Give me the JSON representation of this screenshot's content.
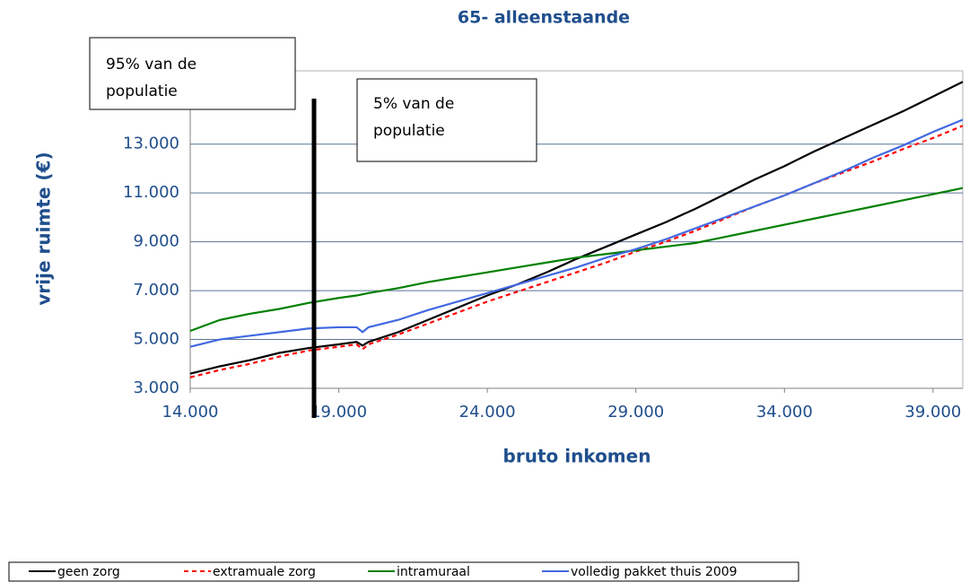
{
  "chart_data": {
    "type": "line",
    "title": "65- alleenstaande",
    "x_label": "bruto inkomen",
    "y_label": "vrije ruimte (€)",
    "x": [
      14000,
      15000,
      16000,
      17000,
      18000,
      19000,
      19600,
      19800,
      20000,
      21000,
      22000,
      23000,
      24000,
      25000,
      26000,
      27000,
      28000,
      29000,
      30000,
      31000,
      32000,
      33000,
      34000,
      35000,
      36000,
      37000,
      38000,
      39000,
      40000
    ],
    "series": [
      {
        "name": "geen zorg",
        "color": "#000000",
        "dash": false,
        "values": [
          3600,
          3900,
          4150,
          4450,
          4650,
          4800,
          4900,
          4750,
          4900,
          5300,
          5800,
          6300,
          6800,
          7250,
          7750,
          8300,
          8800,
          9300,
          9800,
          10350,
          10950,
          11550,
          12100,
          12700,
          13250,
          13800,
          14350,
          14950,
          15550
        ]
      },
      {
        "name": "extramuale zorg",
        "color": "#ff0000",
        "dash": true,
        "values": [
          3450,
          3750,
          4000,
          4300,
          4550,
          4700,
          4800,
          4600,
          4800,
          5200,
          5650,
          6100,
          6550,
          6950,
          7350,
          7750,
          8150,
          8600,
          9000,
          9450,
          9950,
          10450,
          10900,
          11400,
          11850,
          12300,
          12800,
          13250,
          13750
        ]
      },
      {
        "name": "intramuraal",
        "color": "#008000",
        "dash": false,
        "values": [
          5350,
          5800,
          6050,
          6250,
          6500,
          6700,
          6800,
          6850,
          6900,
          7100,
          7350,
          7550,
          7750,
          7950,
          8150,
          8350,
          8500,
          8650,
          8800,
          8950,
          9200,
          9450,
          9700,
          9950,
          10200,
          10450,
          10700,
          10950,
          11200
        ]
      },
      {
        "name": "volledig pakket thuis 2009",
        "color": "#4169e1",
        "dash": false,
        "values": [
          4700,
          5000,
          5150,
          5300,
          5450,
          5500,
          5500,
          5300,
          5500,
          5800,
          6200,
          6550,
          6900,
          7250,
          7600,
          7950,
          8350,
          8700,
          9100,
          9550,
          10000,
          10450,
          10900,
          11400,
          11900,
          12450,
          12950,
          13500,
          14000
        ]
      }
    ],
    "xlim": [
      14000,
      40000
    ],
    "ylim": [
      3000,
      16000
    ],
    "xticks": [
      {
        "value": 14000,
        "label": "14.000"
      },
      {
        "value": 19000,
        "label": "19.000"
      },
      {
        "value": 24000,
        "label": "24.000"
      },
      {
        "value": 29000,
        "label": "29.000"
      },
      {
        "value": 34000,
        "label": "34.000"
      },
      {
        "value": 39000,
        "label": "39.000"
      }
    ],
    "yticks": [
      {
        "value": 3000,
        "label": "3.000"
      },
      {
        "value": 5000,
        "label": "5.000"
      },
      {
        "value": 7000,
        "label": "7.000"
      },
      {
        "value": 9000,
        "label": "9.000"
      },
      {
        "value": 11000,
        "label": "11.000"
      },
      {
        "value": 13000,
        "label": "13.000"
      }
    ],
    "grid": true,
    "annotations": [
      {
        "lines": [
          "95% van de",
          "populatie"
        ]
      },
      {
        "lines": [
          "5% van de",
          "populatie"
        ]
      }
    ]
  }
}
